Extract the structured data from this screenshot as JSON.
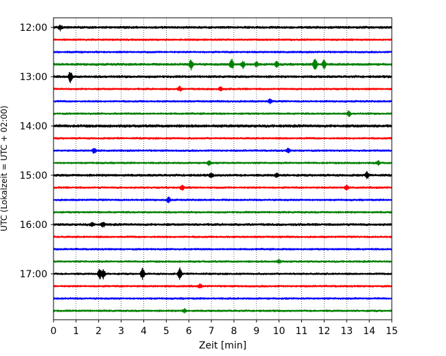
{
  "chart_data": {
    "type": "line",
    "title": "",
    "xlabel": "Zeit  [min]",
    "ylabel": "UTC (Lokalzeit = UTC + 02:00)",
    "xlim": [
      0,
      15
    ],
    "x_ticks": [
      0,
      1,
      2,
      3,
      4,
      5,
      6,
      7,
      8,
      9,
      10,
      11,
      12,
      13,
      14,
      15
    ],
    "x_grid": "dotted vertical lines at each minute",
    "y_tick_labels": [
      "12:00",
      "13:00",
      "14:00",
      "15:00",
      "16:00",
      "17:00"
    ],
    "trace_interval_minutes": 15,
    "color_cycle": [
      "#000000",
      "#ff0000",
      "#0000ff",
      "#008000"
    ],
    "series": [
      {
        "start": "12:00",
        "color": "#000000",
        "amplitude": 0.7,
        "events": [
          {
            "x": 0.3,
            "amp": 1.6
          }
        ]
      },
      {
        "start": "12:15",
        "color": "#ff0000",
        "amplitude": 0.6,
        "events": []
      },
      {
        "start": "12:30",
        "color": "#0000ff",
        "amplitude": 0.6,
        "events": []
      },
      {
        "start": "12:45",
        "color": "#008000",
        "amplitude": 0.7,
        "events": [
          {
            "x": 6.1,
            "amp": 3.2
          },
          {
            "x": 7.9,
            "amp": 3.0
          },
          {
            "x": 8.4,
            "amp": 2.0
          },
          {
            "x": 9.0,
            "amp": 1.5
          },
          {
            "x": 9.9,
            "amp": 1.6
          },
          {
            "x": 11.6,
            "amp": 3.6
          },
          {
            "x": 12.0,
            "amp": 2.8
          }
        ]
      },
      {
        "start": "13:00",
        "color": "#000000",
        "amplitude": 0.7,
        "events": [
          {
            "x": 0.75,
            "amp": 3.4
          }
        ]
      },
      {
        "start": "13:15",
        "color": "#ff0000",
        "amplitude": 0.6,
        "events": [
          {
            "x": 5.6,
            "amp": 1.4
          },
          {
            "x": 7.4,
            "amp": 1.3
          }
        ]
      },
      {
        "start": "13:30",
        "color": "#0000ff",
        "amplitude": 0.6,
        "events": [
          {
            "x": 9.6,
            "amp": 1.3
          }
        ]
      },
      {
        "start": "13:45",
        "color": "#008000",
        "amplitude": 0.6,
        "events": [
          {
            "x": 13.1,
            "amp": 1.5
          }
        ]
      },
      {
        "start": "14:00",
        "color": "#000000",
        "amplitude": 0.8,
        "events": []
      },
      {
        "start": "14:15",
        "color": "#ff0000",
        "amplitude": 0.6,
        "events": []
      },
      {
        "start": "14:30",
        "color": "#0000ff",
        "amplitude": 0.6,
        "events": [
          {
            "x": 1.8,
            "amp": 1.5
          },
          {
            "x": 10.4,
            "amp": 1.4
          }
        ]
      },
      {
        "start": "14:45",
        "color": "#008000",
        "amplitude": 0.6,
        "events": [
          {
            "x": 6.9,
            "amp": 1.4
          },
          {
            "x": 14.4,
            "amp": 1.2
          }
        ]
      },
      {
        "start": "15:00",
        "color": "#000000",
        "amplitude": 0.7,
        "events": [
          {
            "x": 7.0,
            "amp": 1.2
          },
          {
            "x": 9.9,
            "amp": 1.3
          },
          {
            "x": 13.9,
            "amp": 1.8
          }
        ]
      },
      {
        "start": "15:15",
        "color": "#ff0000",
        "amplitude": 0.6,
        "events": [
          {
            "x": 5.7,
            "amp": 1.6
          },
          {
            "x": 13.0,
            "amp": 1.2
          }
        ]
      },
      {
        "start": "15:30",
        "color": "#0000ff",
        "amplitude": 0.6,
        "events": [
          {
            "x": 5.1,
            "amp": 1.5
          }
        ]
      },
      {
        "start": "15:45",
        "color": "#008000",
        "amplitude": 0.6,
        "events": []
      },
      {
        "start": "16:00",
        "color": "#000000",
        "amplitude": 0.7,
        "events": [
          {
            "x": 1.7,
            "amp": 1.2
          },
          {
            "x": 2.2,
            "amp": 1.4
          }
        ]
      },
      {
        "start": "16:15",
        "color": "#ff0000",
        "amplitude": 0.6,
        "events": []
      },
      {
        "start": "16:30",
        "color": "#0000ff",
        "amplitude": 0.6,
        "events": []
      },
      {
        "start": "16:45",
        "color": "#008000",
        "amplitude": 0.6,
        "events": [
          {
            "x": 10.0,
            "amp": 1.2
          }
        ]
      },
      {
        "start": "17:00",
        "color": "#000000",
        "amplitude": 0.6,
        "events": [
          {
            "x": 2.05,
            "amp": 3.3
          },
          {
            "x": 2.2,
            "amp": 3.0
          },
          {
            "x": 3.95,
            "amp": 3.3
          },
          {
            "x": 5.6,
            "amp": 3.4
          }
        ]
      },
      {
        "start": "17:15",
        "color": "#ff0000",
        "amplitude": 0.6,
        "events": [
          {
            "x": 6.5,
            "amp": 1.2
          }
        ]
      },
      {
        "start": "17:30",
        "color": "#0000ff",
        "amplitude": 0.6,
        "events": []
      },
      {
        "start": "17:45",
        "color": "#008000",
        "amplitude": 0.6,
        "events": [
          {
            "x": 5.8,
            "amp": 1.2
          }
        ]
      }
    ]
  }
}
